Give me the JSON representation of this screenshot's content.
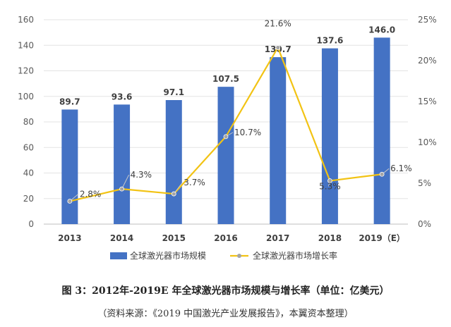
{
  "chart_data": {
    "type": "bar",
    "categories": [
      "2013",
      "2014",
      "2015",
      "2016",
      "2017",
      "2018",
      "2019（E）"
    ],
    "series": [
      {
        "name": "全球激光器市场规模",
        "type": "bar",
        "axis": "left",
        "values": [
          89.7,
          93.6,
          97.1,
          107.5,
          130.7,
          137.6,
          146.0
        ],
        "labels": [
          "89.7",
          "93.6",
          "97.1",
          "107.5",
          "130.7",
          "137.6",
          "146.0"
        ],
        "color": "#4472C4"
      },
      {
        "name": "全球激光器市场增长率",
        "type": "line",
        "axis": "right",
        "values": [
          2.8,
          4.3,
          3.7,
          10.7,
          21.6,
          5.3,
          6.1
        ],
        "labels": [
          "2.8%",
          "4.3%",
          "3.7%",
          "10.7%",
          "21.6%",
          "5.3%",
          "6.1%"
        ],
        "color": "#F2C314",
        "marker_color": "#A5A5A5"
      }
    ],
    "y_left": {
      "min": 0,
      "max": 160,
      "step": 20,
      "ticks": [
        "0",
        "20",
        "40",
        "60",
        "80",
        "100",
        "120",
        "140",
        "160"
      ]
    },
    "y_right": {
      "min": 0,
      "max": 25,
      "step": 5,
      "ticks": [
        "0%",
        "5%",
        "10%",
        "15%",
        "20%",
        "25%"
      ]
    },
    "legend_position": "bottom",
    "grid": true
  },
  "caption": "图 3：2012年-2019E 年全球激光器市场规模与增长率（单位：亿美元）",
  "source": "（资料来源：《2019 中国激光产业发展报告》，本翼资本整理）"
}
